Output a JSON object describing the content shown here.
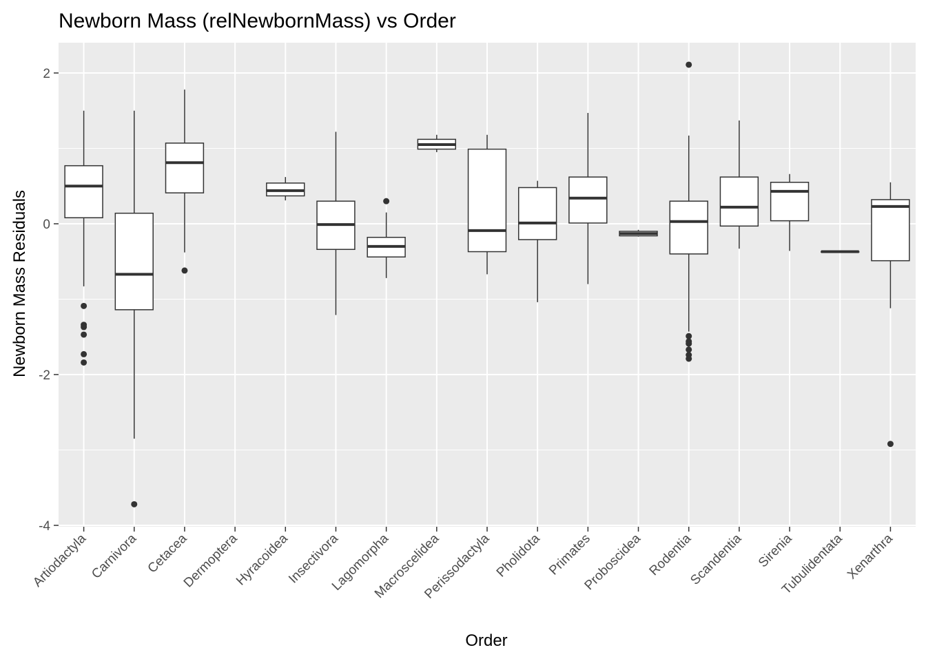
{
  "chart_data": {
    "type": "boxplot",
    "title": "Newborn Mass (relNewbornMass) vs Order",
    "xlabel": "Order",
    "ylabel": "Newborn Mass Residuals",
    "ylim": [
      -4.0,
      2.4
    ],
    "yticks": [
      -4,
      -2,
      0,
      2
    ],
    "grid": true,
    "legend": "none",
    "colors": {
      "panel": "#ebebeb",
      "grid": "#ffffff",
      "box_fill": "#ffffff",
      "box_stroke": "#333333",
      "outlier": "#333333",
      "tick_text": "#4d4d4d"
    },
    "categories": [
      "Artiodactyla",
      "Carnivora",
      "Cetacea",
      "Dermoptera",
      "Hyracoidea",
      "Insectivora",
      "Lagomorpha",
      "Macroscelidea",
      "Perissodactyla",
      "Pholidota",
      "Primates",
      "Proboscidea",
      "Rodentia",
      "Scandentia",
      "Sirenia",
      "Tubulidentata",
      "Xenarthra"
    ],
    "boxes": [
      {
        "category": "Artiodactyla",
        "min": -0.83,
        "q1": 0.08,
        "median": 0.5,
        "q3": 0.77,
        "max": 1.5,
        "outliers": [
          -1.09,
          -1.34,
          -1.37,
          -1.47,
          -1.73,
          -1.84
        ]
      },
      {
        "category": "Carnivora",
        "min": -2.85,
        "q1": -1.14,
        "median": -0.67,
        "q3": 0.14,
        "max": 1.5,
        "outliers": [
          -3.72
        ]
      },
      {
        "category": "Cetacea",
        "min": -0.38,
        "q1": 0.41,
        "median": 0.81,
        "q3": 1.07,
        "max": 1.78,
        "outliers": [
          -0.62
        ]
      },
      {
        "category": "Dermoptera",
        "min": null,
        "q1": null,
        "median": null,
        "q3": null,
        "max": null,
        "outliers": []
      },
      {
        "category": "Hyracoidea",
        "min": 0.31,
        "q1": 0.37,
        "median": 0.44,
        "q3": 0.54,
        "max": 0.62,
        "outliers": []
      },
      {
        "category": "Insectivora",
        "min": -1.21,
        "q1": -0.34,
        "median": -0.01,
        "q3": 0.3,
        "max": 1.22,
        "outliers": []
      },
      {
        "category": "Lagomorpha",
        "min": -0.72,
        "q1": -0.44,
        "median": -0.3,
        "q3": -0.18,
        "max": 0.15,
        "outliers": [
          0.3
        ]
      },
      {
        "category": "Macroscelidea",
        "min": 0.95,
        "q1": 0.99,
        "median": 1.05,
        "q3": 1.12,
        "max": 1.18,
        "outliers": []
      },
      {
        "category": "Perissodactyla",
        "min": -0.67,
        "q1": -0.37,
        "median": -0.09,
        "q3": 0.99,
        "max": 1.18,
        "outliers": []
      },
      {
        "category": "Pholidota",
        "min": -1.04,
        "q1": -0.21,
        "median": 0.01,
        "q3": 0.48,
        "max": 0.57,
        "outliers": []
      },
      {
        "category": "Primates",
        "min": -0.8,
        "q1": 0.01,
        "median": 0.34,
        "q3": 0.62,
        "max": 1.47,
        "outliers": []
      },
      {
        "category": "Proboscidea",
        "min": -0.17,
        "q1": -0.16,
        "median": -0.13,
        "q3": -0.1,
        "max": -0.08,
        "outliers": []
      },
      {
        "category": "Rodentia",
        "min": -1.43,
        "q1": -0.4,
        "median": 0.03,
        "q3": 0.3,
        "max": 1.17,
        "outliers": [
          2.11,
          -1.49,
          -1.56,
          -1.59,
          -1.67,
          -1.74,
          -1.79
        ]
      },
      {
        "category": "Scandentia",
        "min": -0.33,
        "q1": -0.03,
        "median": 0.22,
        "q3": 0.62,
        "max": 1.37,
        "outliers": []
      },
      {
        "category": "Sirenia",
        "min": -0.36,
        "q1": 0.04,
        "median": 0.43,
        "q3": 0.55,
        "max": 0.66,
        "outliers": []
      },
      {
        "category": "Tubulidentata",
        "min": -0.37,
        "q1": -0.37,
        "median": -0.37,
        "q3": -0.37,
        "max": -0.37,
        "outliers": []
      },
      {
        "category": "Xenarthra",
        "min": -1.12,
        "q1": -0.49,
        "median": 0.23,
        "q3": 0.32,
        "max": 0.55,
        "outliers": [
          -2.92
        ]
      }
    ]
  }
}
